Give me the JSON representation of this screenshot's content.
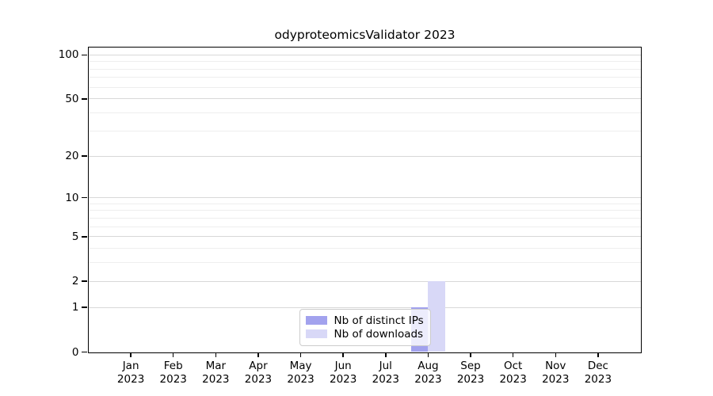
{
  "chart_data": {
    "type": "bar",
    "title": "odyproteomicsValidator 2023",
    "categories": [
      "Jan 2023",
      "Feb 2023",
      "Mar 2023",
      "Apr 2023",
      "May 2023",
      "Jun 2023",
      "Jul 2023",
      "Aug 2023",
      "Sep 2023",
      "Oct 2023",
      "Nov 2023",
      "Dec 2023"
    ],
    "series": [
      {
        "name": "Nb of distinct IPs",
        "color": "#a2a2ee",
        "values": [
          0,
          0,
          0,
          0,
          0,
          0,
          0,
          1,
          0,
          0,
          0,
          0
        ]
      },
      {
        "name": "Nb of downloads",
        "color": "#d8d8f7",
        "values": [
          0,
          0,
          0,
          0,
          0,
          0,
          0,
          2,
          0,
          0,
          0,
          0
        ]
      }
    ],
    "xlabel": "",
    "ylabel": "",
    "yscale": "log1p",
    "ylim": [
      0,
      113
    ],
    "y_major_ticks": [
      0,
      1,
      2,
      5,
      10,
      20,
      50,
      100
    ],
    "y_minor_ticks": [
      3,
      4,
      6,
      7,
      8,
      9,
      30,
      40,
      60,
      70,
      80,
      90
    ],
    "grid": true,
    "legend_position": "lower center",
    "bar_width_fraction": 0.4
  },
  "colors": {
    "background": "#ffffff",
    "axis": "#000000",
    "grid_major": "#d8d8d8",
    "grid_minor": "#eeeeee",
    "legend_border": "#cccccc"
  }
}
